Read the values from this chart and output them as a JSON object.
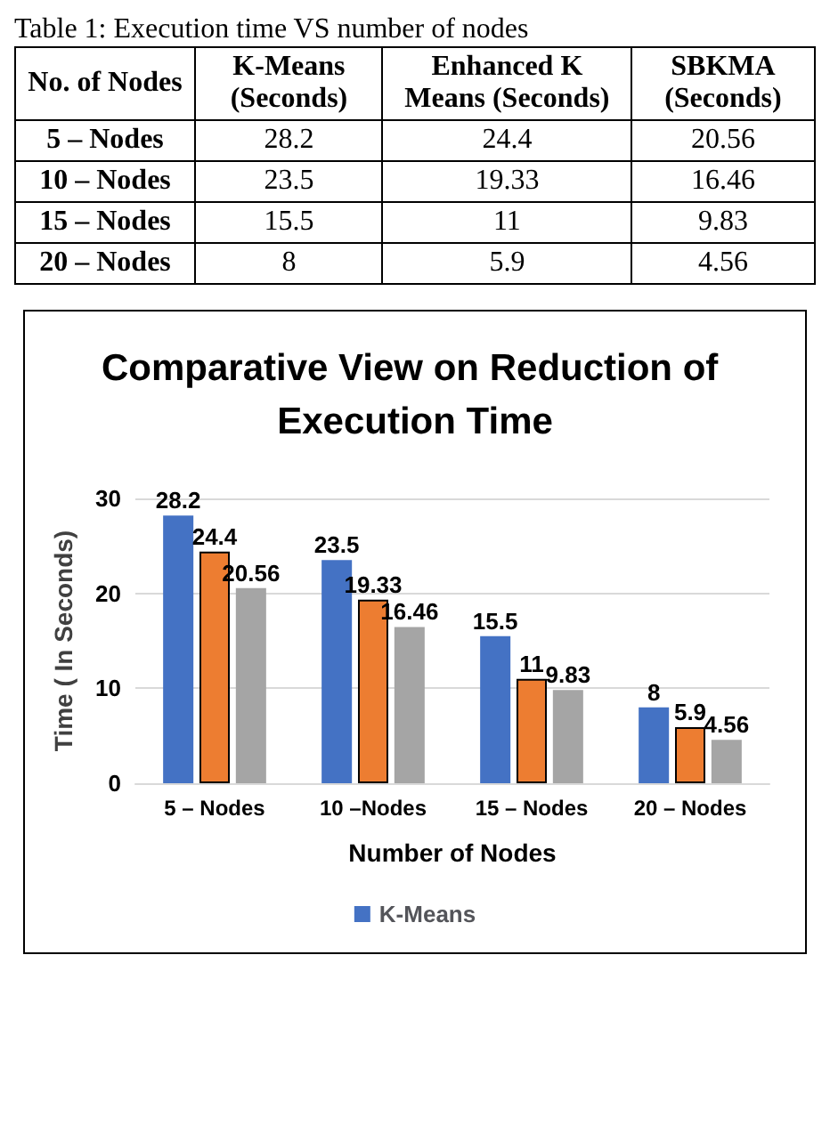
{
  "chart_data": [
    {
      "type": "other",
      "title": "Table 1: Execution time VS number of nodes",
      "categories": [
        "No. of Nodes",
        "K-Means (Seconds)",
        "Enhanced K Means (Seconds)",
        "SBKMA (Seconds)"
      ],
      "cell_labels": [
        [
          "5 – Nodes",
          "28.2",
          "24.4",
          "20.56"
        ],
        [
          "10 – Nodes",
          "23.5",
          "19.33",
          "16.46"
        ],
        [
          "15 – Nodes",
          "15.5",
          "11",
          "9.83"
        ],
        [
          "20 – Nodes",
          "8",
          "5.9",
          "4.56"
        ]
      ]
    },
    {
      "type": "bar",
      "title": "Comparative View on Reduction of Execution Time",
      "xlabel": "Number of Nodes",
      "ylabel": "Time ( In Seconds)",
      "categories": [
        "5 – Nodes",
        "10 –Nodes",
        "15 – Nodes",
        "20 – Nodes"
      ],
      "series": [
        {
          "name": "K-Means",
          "color": "#4472c4",
          "values": [
            28.2,
            23.5,
            15.5,
            8
          ]
        },
        {
          "color": "#ed7d31",
          "values": [
            24.4,
            19.33,
            11,
            5.9
          ]
        },
        {
          "color": "#a5a5a5",
          "values": [
            20.56,
            16.46,
            9.83,
            4.56
          ]
        }
      ],
      "ylim": [
        0,
        30
      ],
      "yticks": [
        0,
        10,
        20,
        30
      ],
      "grid": "y",
      "data_labels": true,
      "legend": "bottom"
    }
  ]
}
